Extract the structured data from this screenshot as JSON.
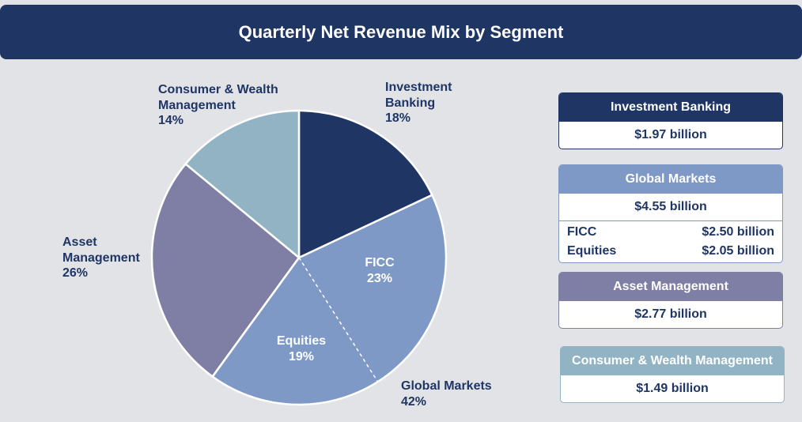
{
  "header": {
    "title": "Quarterly Net Revenue Mix by Segment"
  },
  "colors": {
    "investment_banking": "#1f3564",
    "global_markets": "#7f99c7",
    "asset_management": "#7f7ea4",
    "consumer_wealth": "#92b3c4",
    "text_dark": "#1f3564",
    "background": "#e2e3e7"
  },
  "chart_data": {
    "type": "pie",
    "title": "Quarterly Net Revenue Mix by Segment",
    "slices": [
      {
        "label": "Investment Banking",
        "percent": 18,
        "value_billion": 1.97
      },
      {
        "label": "FICC",
        "percent": 23,
        "value_billion": 2.5,
        "group": "Global Markets"
      },
      {
        "label": "Equities",
        "percent": 19,
        "value_billion": 2.05,
        "group": "Global Markets"
      },
      {
        "label": "Asset Management",
        "percent": 26,
        "value_billion": 2.77
      },
      {
        "label": "Consumer & Wealth Management",
        "percent": 14,
        "value_billion": 1.49
      }
    ],
    "labels": {
      "investment_banking": {
        "line1": "Investment",
        "line2": "Banking",
        "pct": "18%"
      },
      "consumer_wealth": {
        "line1": "Consumer & Wealth",
        "line2": "Management",
        "pct": "14%"
      },
      "asset_management": {
        "line1": "Asset",
        "line2": "Management",
        "pct": "26%"
      },
      "global_markets": {
        "line1": "Global Markets",
        "pct": "42%"
      },
      "ficc": {
        "line1": "FICC",
        "pct": "23%"
      },
      "equities": {
        "line1": "Equities",
        "pct": "19%"
      }
    }
  },
  "cards": {
    "investment_banking": {
      "title": "Investment Banking",
      "value": "$1.97 billion"
    },
    "global_markets": {
      "title": "Global Markets",
      "value": "$4.55 billion",
      "rows": [
        {
          "label": "FICC",
          "value": "$2.50 billion"
        },
        {
          "label": "Equities",
          "value": "$2.05 billion"
        }
      ]
    },
    "asset_management": {
      "title": "Asset Management",
      "value": "$2.77 billion"
    },
    "consumer_wealth": {
      "title": "Consumer & Wealth Management",
      "value": "$1.49 billion"
    }
  }
}
